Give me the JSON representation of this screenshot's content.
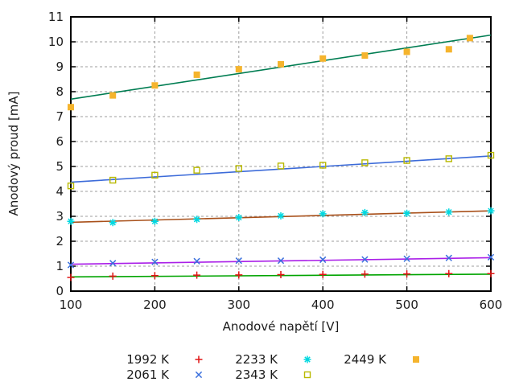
{
  "figure": {
    "background": "#ffffff",
    "border_color": "#000000",
    "grid_color": "#9c9c9c",
    "text_color": "#1c1c1c"
  },
  "chart_data": {
    "type": "scatter",
    "title": "",
    "xlabel": "Anodové napětí [V]",
    "ylabel": "Anodový proud [mA]",
    "xlim": [
      100,
      600
    ],
    "ylim": [
      0,
      11
    ],
    "xticks": [
      100,
      200,
      300,
      400,
      500,
      600
    ],
    "yticks": [
      0,
      1,
      2,
      3,
      4,
      5,
      6,
      7,
      8,
      9,
      10,
      11
    ],
    "grid": "dashed, at ticks, mirrored inward tick marks on all four borders",
    "legend_position": "below plot, 3 columns x 2 rows, column-major",
    "series": [
      {
        "name": "1992 K",
        "marker": "plus",
        "marker_color": "#e01414",
        "line_color": "#00a400",
        "x": [
          100,
          150,
          200,
          250,
          300,
          350,
          400,
          450,
          500,
          550,
          600
        ],
        "y": [
          0.55,
          0.6,
          0.62,
          0.64,
          0.65,
          0.66,
          0.67,
          0.68,
          0.69,
          0.7,
          0.7
        ],
        "fit": {
          "x": [
            100,
            600
          ],
          "y": [
            0.57,
            0.68
          ]
        }
      },
      {
        "name": "2061 K",
        "marker": "cross",
        "marker_color": "#3a6fdd",
        "line_color": "#aa1fe8",
        "x": [
          100,
          150,
          200,
          250,
          300,
          350,
          400,
          450,
          500,
          550,
          600
        ],
        "y": [
          1.05,
          1.12,
          1.17,
          1.2,
          1.22,
          1.22,
          1.26,
          1.27,
          1.3,
          1.33,
          1.36
        ],
        "fit": {
          "x": [
            100,
            600
          ],
          "y": [
            1.08,
            1.34
          ]
        }
      },
      {
        "name": "2233 K",
        "marker": "asterisk",
        "marker_color": "#00d8e0",
        "line_color": "#a8501a",
        "x": [
          100,
          150,
          200,
          250,
          300,
          350,
          400,
          450,
          500,
          550,
          600
        ],
        "y": [
          2.8,
          2.75,
          2.8,
          2.88,
          2.95,
          3.02,
          3.1,
          3.15,
          3.12,
          3.17,
          3.22
        ],
        "fit": {
          "x": [
            100,
            600
          ],
          "y": [
            2.76,
            3.22
          ]
        }
      },
      {
        "name": "2343 K",
        "marker": "square-open",
        "marker_color": "#b9b900",
        "line_color": "#3c6bd9",
        "x": [
          100,
          150,
          200,
          250,
          300,
          350,
          400,
          450,
          500,
          550,
          600
        ],
        "y": [
          4.22,
          4.45,
          4.65,
          4.85,
          4.92,
          5.02,
          5.05,
          5.15,
          5.24,
          5.31,
          5.45
        ],
        "fit": {
          "x": [
            100,
            600
          ],
          "y": [
            4.37,
            5.42
          ]
        }
      },
      {
        "name": "2449 K",
        "marker": "square-filled",
        "marker_color": "#f5b42d",
        "line_color": "#007d52",
        "x": [
          100,
          150,
          200,
          250,
          300,
          350,
          400,
          450,
          500,
          550,
          575
        ],
        "y": [
          7.38,
          7.85,
          8.25,
          8.68,
          8.9,
          9.1,
          9.33,
          9.45,
          9.6,
          9.7,
          10.15
        ],
        "fit": {
          "x": [
            100,
            600
          ],
          "y": [
            7.7,
            10.27
          ]
        }
      }
    ]
  }
}
